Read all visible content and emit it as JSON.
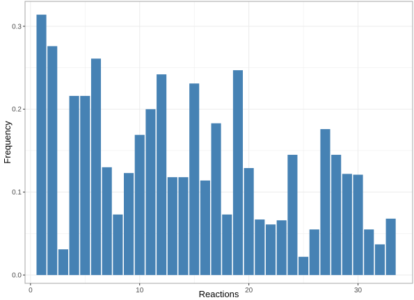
{
  "chart_data": {
    "type": "bar",
    "xlabel": "Reactions",
    "ylabel": "Frequency",
    "title": "",
    "x": [
      1,
      2,
      3,
      4,
      5,
      6,
      7,
      8,
      9,
      10,
      11,
      12,
      13,
      14,
      15,
      16,
      17,
      18,
      19,
      20,
      21,
      22,
      23,
      24,
      25,
      26,
      27,
      28,
      29,
      30,
      31,
      32,
      33
    ],
    "values": [
      0.314,
      0.276,
      0.031,
      0.216,
      0.216,
      0.261,
      0.13,
      0.073,
      0.123,
      0.169,
      0.2,
      0.242,
      0.118,
      0.118,
      0.231,
      0.114,
      0.183,
      0.073,
      0.247,
      0.129,
      0.067,
      0.061,
      0.066,
      0.145,
      0.022,
      0.055,
      0.176,
      0.145,
      0.122,
      0.121,
      0.055,
      0.037,
      0.068
    ],
    "xlim": [
      -0.5,
      35
    ],
    "ylim": [
      -0.01,
      0.33
    ],
    "xticks": [
      0,
      10,
      20,
      30
    ],
    "xtick_labels": [
      "0",
      "10",
      "20",
      "30"
    ],
    "yticks": [
      0.0,
      0.1,
      0.2,
      0.3
    ],
    "ytick_labels": [
      "0.0",
      "0.1",
      "0.2",
      "0.3"
    ],
    "grid": true,
    "bar_color": "#4682b4",
    "grid_color": "#ebebeb",
    "border_color": "#a6a6a6"
  }
}
